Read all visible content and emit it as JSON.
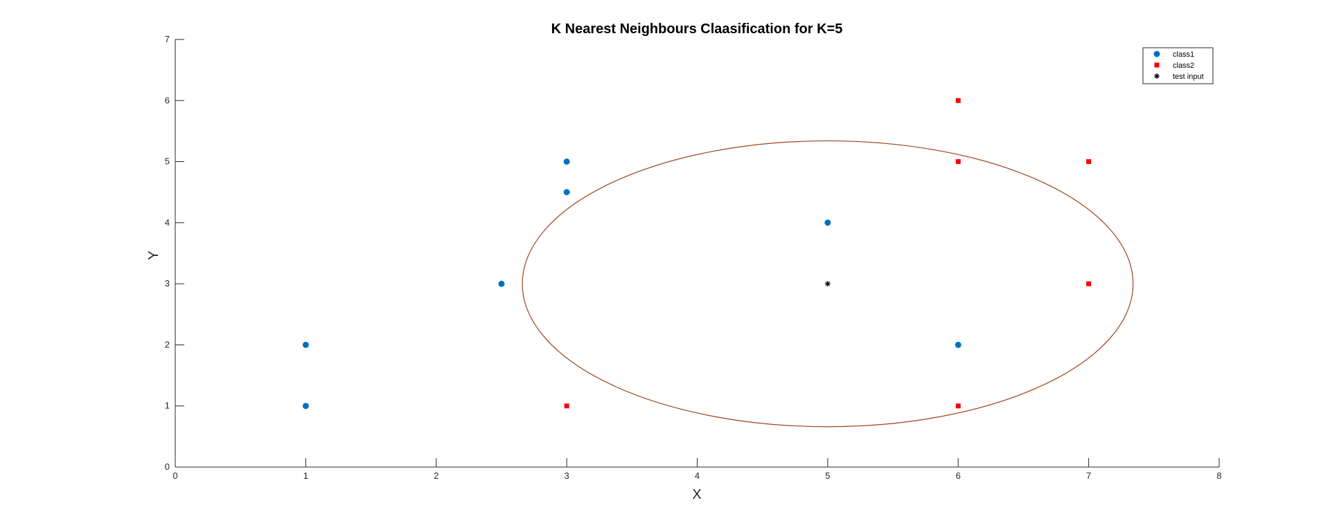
{
  "chart_data": {
    "type": "scatter",
    "title": "K Nearest Neighbours Claasification for K=5",
    "xlabel": "X",
    "ylabel": "Y",
    "xlim": [
      0,
      8
    ],
    "ylim": [
      0,
      7
    ],
    "xticks": [
      "0",
      "1",
      "2",
      "3",
      "4",
      "5",
      "6",
      "7",
      "8"
    ],
    "yticks": [
      "0",
      "1",
      "2",
      "3",
      "4",
      "5",
      "6",
      "7"
    ],
    "grid": false,
    "legend_position": "top-right",
    "series": [
      {
        "name": "class1",
        "marker": "circle",
        "color": "#0072BD",
        "x": [
          1,
          1,
          2.5,
          3,
          3,
          5,
          6
        ],
        "y": [
          1,
          2,
          3,
          4.5,
          5,
          4,
          2
        ]
      },
      {
        "name": "class2",
        "marker": "square",
        "color": "#FF0000",
        "x": [
          3,
          6,
          6,
          6,
          7,
          7
        ],
        "y": [
          1,
          1,
          5,
          6,
          5,
          3
        ]
      },
      {
        "name": "test input",
        "marker": "asterisk",
        "color": "#000000",
        "x": [
          5
        ],
        "y": [
          3
        ]
      }
    ],
    "neighbourhood": {
      "shape": "circle",
      "center": [
        5,
        3
      ],
      "radius": 2.34,
      "color": "#A0401A"
    }
  }
}
